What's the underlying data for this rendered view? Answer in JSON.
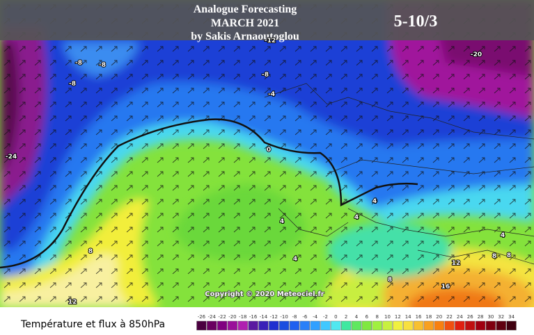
{
  "header": {
    "lines": [
      "Analogue Forecasting",
      "MARCH 2021",
      "by Sakis Arnaoutoglou"
    ],
    "period": "5-10/3"
  },
  "map": {
    "contour_labels": [
      "-8",
      "-8",
      "-8",
      "-12",
      "-8",
      "-4",
      "-20",
      "-24",
      "0",
      "4",
      "4",
      "4",
      "4",
      "8",
      "8",
      "8",
      "12",
      "8",
      "16",
      "12",
      "4"
    ],
    "copyright": "Copyright © 2020 Meteociel.fr"
  },
  "footer": {
    "label": "Température et flux à 850hPa",
    "scale": {
      "ticks": [
        -26,
        -24,
        -22,
        -20,
        -18,
        -16,
        -14,
        -12,
        -10,
        -8,
        -6,
        -4,
        -2,
        0,
        2,
        4,
        6,
        8,
        10,
        12,
        14,
        16,
        18,
        20,
        22,
        24,
        26,
        28,
        30,
        32,
        34
      ],
      "colors": [
        "#4b0040",
        "#6a0060",
        "#800080",
        "#9a109a",
        "#b020b0",
        "#5a1aa0",
        "#3a20b8",
        "#2030d0",
        "#1a4de0",
        "#2060f0",
        "#2a80f8",
        "#30a0ff",
        "#40c8ff",
        "#50e8f0",
        "#40e8a0",
        "#60e860",
        "#80e840",
        "#a0f040",
        "#c8f040",
        "#f0f040",
        "#f8e040",
        "#f8c030",
        "#f8a020",
        "#f88010",
        "#f05010",
        "#e02010",
        "#c01010",
        "#a00010",
        "#800010",
        "#600010",
        "#400010"
      ]
    }
  }
}
